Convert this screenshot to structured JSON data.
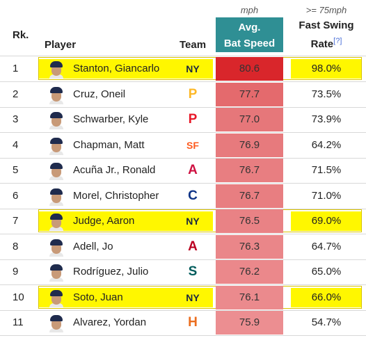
{
  "header": {
    "rank": "Rk.",
    "player": "Player",
    "team": "Team",
    "bat_speed_unit": "mph",
    "bat_speed_line1": "Avg.",
    "bat_speed_line2": "Bat Speed",
    "fast_swing_unit": ">= 75mph",
    "fast_swing_line1": "Fast Swing",
    "fast_swing_line2": "Rate",
    "fast_swing_note": "[?]"
  },
  "colors": {
    "bat_speed_header": "#2f8f94",
    "top_speed": "#d9262b",
    "highlight": "#fff700"
  },
  "rows": [
    {
      "rank": "1",
      "player": "Stanton, Giancarlo",
      "team_icon": "yankees-logo-icon",
      "team_glyph": "NY",
      "team_color": "#1c2841",
      "bat_speed": "80.6",
      "fast_swing_rate": "98.0%",
      "highlighted": true,
      "speed_color": "#d9262b"
    },
    {
      "rank": "2",
      "player": "Cruz, Oneil",
      "team_icon": "pirates-logo-icon",
      "team_glyph": "P",
      "team_color": "#fdb827",
      "bat_speed": "77.7",
      "fast_swing_rate": "73.5%",
      "highlighted": false,
      "speed_color": "#e46a6d"
    },
    {
      "rank": "3",
      "player": "Schwarber, Kyle",
      "team_icon": "phillies-logo-icon",
      "team_glyph": "P",
      "team_color": "#e81828",
      "bat_speed": "77.0",
      "fast_swing_rate": "73.9%",
      "highlighted": false,
      "speed_color": "#e6777a"
    },
    {
      "rank": "4",
      "player": "Chapman, Matt",
      "team_icon": "giants-logo-icon",
      "team_glyph": "SF",
      "team_color": "#fd5a1e",
      "bat_speed": "76.9",
      "fast_swing_rate": "64.2%",
      "highlighted": false,
      "speed_color": "#e77a7d"
    },
    {
      "rank": "5",
      "player": "Acuña Jr., Ronald",
      "team_icon": "braves-logo-icon",
      "team_glyph": "A",
      "team_color": "#ce1141",
      "bat_speed": "76.7",
      "fast_swing_rate": "71.5%",
      "highlighted": false,
      "speed_color": "#e87e81"
    },
    {
      "rank": "6",
      "player": "Morel, Christopher",
      "team_icon": "cubs-logo-icon",
      "team_glyph": "C",
      "team_color": "#0e3386",
      "bat_speed": "76.7",
      "fast_swing_rate": "71.0%",
      "highlighted": false,
      "speed_color": "#e87e81"
    },
    {
      "rank": "7",
      "player": "Judge, Aaron",
      "team_icon": "yankees-logo-icon",
      "team_glyph": "NY",
      "team_color": "#1c2841",
      "bat_speed": "76.5",
      "fast_swing_rate": "69.0%",
      "highlighted": true,
      "speed_color": "#e98285"
    },
    {
      "rank": "8",
      "player": "Adell, Jo",
      "team_icon": "angels-logo-icon",
      "team_glyph": "A",
      "team_color": "#ba0021",
      "bat_speed": "76.3",
      "fast_swing_rate": "64.7%",
      "highlighted": false,
      "speed_color": "#ea8689"
    },
    {
      "rank": "9",
      "player": "Rodríguez, Julio",
      "team_icon": "mariners-logo-icon",
      "team_glyph": "S",
      "team_color": "#005c5c",
      "bat_speed": "76.2",
      "fast_swing_rate": "65.0%",
      "highlighted": false,
      "speed_color": "#eb888b"
    },
    {
      "rank": "10",
      "player": "Soto, Juan",
      "team_icon": "yankees-logo-icon",
      "team_glyph": "NY",
      "team_color": "#1c2841",
      "bat_speed": "76.1",
      "fast_swing_rate": "66.0%",
      "highlighted": true,
      "speed_color": "#eb8a8d"
    },
    {
      "rank": "11",
      "player": "Alvarez, Yordan",
      "team_icon": "astros-logo-icon",
      "team_glyph": "H",
      "team_color": "#eb6e1f",
      "bat_speed": "75.9",
      "fast_swing_rate": "54.7%",
      "highlighted": false,
      "speed_color": "#ec8e91"
    }
  ]
}
